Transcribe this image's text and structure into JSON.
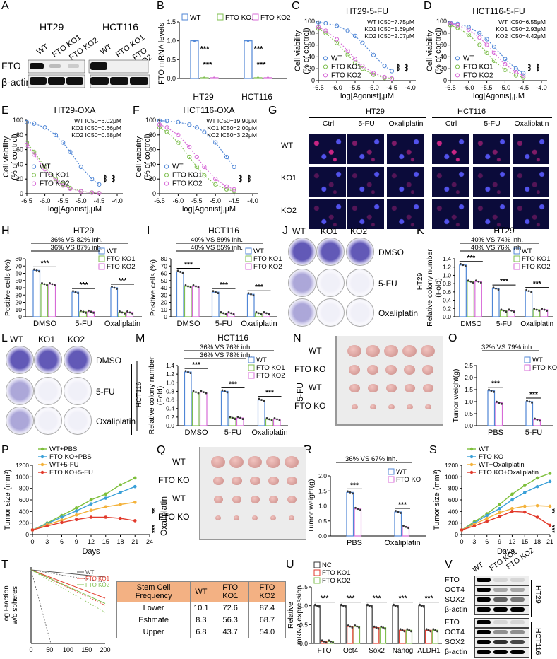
{
  "labels": [
    "A",
    "B",
    "C",
    "D",
    "E",
    "F",
    "G",
    "H",
    "I",
    "J",
    "K",
    "L",
    "M",
    "N",
    "O",
    "P",
    "Q",
    "R",
    "S",
    "T",
    "U",
    "V"
  ],
  "A": {
    "cells": [
      "HT29",
      "HCT116"
    ],
    "lanes": [
      "WT",
      "FTO KO1",
      "FTO KO2"
    ],
    "rows": [
      "FTO",
      "β-actin"
    ]
  },
  "B": {
    "ylabel": "FTO mRNA levels",
    "categories": [
      "HT29",
      "HCT116"
    ],
    "legend": [
      "WT",
      "FTO KO1",
      "FTO KO2"
    ],
    "sig": "***"
  },
  "C": {
    "title": "HT29-5-FU",
    "ic50": [
      "WT IC50=7.75μM",
      "KO1 IC50=1.69μM",
      "KO2 IC50=2.07μM"
    ]
  },
  "D": {
    "title": "HCT116-5-FU",
    "ic50": [
      "WT IC50=6.55μM",
      "KO1 IC50=2.93μM",
      "KO2 IC50=4.42μM"
    ],
    "xlabel": "log[Agonis],μM"
  },
  "E": {
    "title": "HT29-OXA",
    "ic50": [
      "WT IC50=6.02μM",
      "KO1 IC50=0.66μM",
      "KO2 IC50=0.58μM"
    ]
  },
  "F": {
    "title": "HCT116-OXA",
    "ic50": [
      "WT IC50=19.90μM",
      "KO1 IC50=2.00μM",
      "KO2 IC50=3.22μM"
    ]
  },
  "curve": {
    "xlabel": "log[Agonist],μM",
    "ylabel1": "Cell viability",
    "ylabel2": "(% of control)",
    "legend": [
      "WT",
      "FTO KO1",
      "FTO KO2"
    ],
    "xticks": [
      "-6.5",
      "-6.0",
      "-5.5",
      "-5.0",
      "-4.5",
      "-4.0"
    ],
    "yticks": [
      "0",
      "20",
      "40",
      "60",
      "80",
      "100"
    ],
    "sig": "***"
  },
  "G": {
    "groups": [
      "HT29",
      "HCT116"
    ],
    "cols": [
      "Ctrl",
      "5-FU",
      "Oxaliplatin",
      "Ctrl",
      "5-FU",
      "Oxaliplatin"
    ],
    "rows": [
      "WT",
      "KO1",
      "KO2"
    ]
  },
  "H": {
    "title": "HT29",
    "notes": [
      "36% VS 82% inh.",
      "36% VS 87% inh."
    ],
    "ylabel": "Positive cells (%)",
    "cats": [
      "DMSO",
      "5-FU",
      "Oxaliplatin"
    ],
    "yticks": [
      "0",
      "10",
      "20",
      "30",
      "40",
      "50",
      "60",
      "70",
      "80"
    ]
  },
  "I": {
    "title": "HCT116",
    "notes": [
      "40% VS 89% inh.",
      "40% VS 85% inh."
    ],
    "ylabel": "Positive cells (%)",
    "cats": [
      "DMSO",
      "5-FU",
      "Oxaliplatin"
    ]
  },
  "J": {
    "cols": [
      "WT",
      "KO1",
      "KO2"
    ],
    "rows": [
      "DMSO",
      "5-FU",
      "Oxaliplatin"
    ]
  },
  "K": {
    "title": "HT29",
    "notes": [
      "40% VS 74% inh.",
      "40% VS 76% inh."
    ],
    "ylabel1": "Relative colony number",
    "ylabel2": "(Fold)",
    "side": "HT29",
    "cats": [
      "DMSO",
      "5-FU",
      "Oxaliplatin"
    ],
    "yticks": [
      "0.0",
      "0.2",
      "0.4",
      "0.6",
      "0.8",
      "1.0",
      "1.2",
      "1.4"
    ]
  },
  "L": {
    "cols": [
      "WT",
      "KO1",
      "KO2"
    ],
    "rows": [
      "DMSO",
      "5-FU",
      "Oxaliplatin"
    ],
    "side": "HCT116"
  },
  "M": {
    "title": "HCT116",
    "notes": [
      "36% VS 76% inh.",
      "36% VS 78% inh."
    ],
    "ylabel1": "Relative colony number",
    "ylabel2": "(Fold)",
    "cats": [
      "DMSO",
      "5-FU",
      "Oxaliplatin"
    ]
  },
  "N": {
    "rows": [
      "WT",
      "FTO KO",
      "WT",
      "FTO KO"
    ],
    "side": "5-FU"
  },
  "O": {
    "note": "32% VS 79% inh.",
    "ylabel": "Tumor weight(g)",
    "legend": [
      "WT",
      "FTO KO"
    ],
    "cats": [
      "PBS",
      "5-FU"
    ],
    "yticks": [
      "0.0",
      "0.5",
      "1.0",
      "1.5",
      "2.0",
      "2.5"
    ]
  },
  "P": {
    "ylabel": "Tumor size (mm³)",
    "xlabel": "Days",
    "legend": [
      "WT+PBS",
      "FTO KO+PBS",
      "WT+5-FU",
      "FTO KO+5-FU"
    ],
    "xticks": [
      "0",
      "3",
      "6",
      "9",
      "12",
      "15",
      "18",
      "21",
      "24"
    ],
    "yticks": [
      "0",
      "200",
      "400",
      "600",
      "800",
      "1000",
      "1200"
    ],
    "sig": [
      "**",
      "***"
    ]
  },
  "Q": {
    "rows": [
      "WT",
      "FTO KO",
      "WT",
      "FTO KO"
    ],
    "side": "Oxaliplatin"
  },
  "R": {
    "note": "36% VS 67% inh.",
    "ylabel": "Tumor weight(g)",
    "legend": [
      "WT",
      "FTO KO"
    ],
    "cats": [
      "PBS",
      "Oxaliplatin"
    ]
  },
  "S": {
    "ylabel": "Tumor size (mm³)",
    "xlabel": "Days",
    "legend": [
      "WT",
      "FTO KO",
      "WT+Oxaliplatin",
      "FTO KO+Oxaliplatin"
    ],
    "xticks": [
      "0",
      "3",
      "6",
      "9",
      "12",
      "15",
      "18",
      "21"
    ],
    "yticks": [
      "0",
      "200",
      "400",
      "600",
      "800",
      "1000",
      "1200"
    ],
    "sig": [
      "**",
      "***"
    ]
  },
  "T": {
    "ylabel1": "Log Fraction",
    "ylabel2": "w/o spheres",
    "legend": [
      "WT",
      "FTO KO1",
      "FTO KO2"
    ],
    "xticks": [
      "0",
      "50",
      "100",
      "150",
      "200"
    ],
    "table": {
      "header": [
        "Stem Cell Frequency",
        "WT",
        "FTO KO1",
        "FTO KO2"
      ],
      "rows": [
        [
          "Lower",
          "10.1",
          "72.6",
          "87.4"
        ],
        [
          "Estimate",
          "8.3",
          "56.3",
          "68.7"
        ],
        [
          "Upper",
          "6.8",
          "43.7",
          "54.0"
        ]
      ]
    }
  },
  "U": {
    "ylabel1": "Relative",
    "ylabel2": "mRNA expression",
    "legend": [
      "NC",
      "FTO KO1",
      "FTO KO2"
    ],
    "cats": [
      "FTO",
      "Oct4",
      "Sox2",
      "Nanog",
      "ALDH1"
    ],
    "yticks": [
      "0.0",
      "0.5",
      "1.0",
      "1.5"
    ]
  },
  "V": {
    "lanes": [
      "WT",
      "FTO KO1",
      "FTO KO2"
    ],
    "rows": [
      "FTO",
      "OCT4",
      "SOX2",
      "β-actin",
      "FTO",
      "OCT4",
      "SOX2",
      "β-actin"
    ],
    "groups": [
      "HT29",
      "HCT116"
    ]
  },
  "colors": {
    "wt": "#4f86d6",
    "ko1": "#7fbf4f",
    "ko2": "#d76ad7",
    "red": "#e23a2c",
    "orange": "#f4b23a"
  },
  "chart_data": [
    {
      "type": "bar",
      "title": "",
      "categories": [
        "HT29",
        "HCT116"
      ],
      "ylabel": "FTO mRNA levels",
      "ylim": [
        0,
        1.5
      ],
      "series": [
        {
          "name": "WT",
          "values": [
            1.0,
            1.0
          ]
        },
        {
          "name": "FTO KO1",
          "values": [
            0.02,
            0.02
          ]
        },
        {
          "name": "FTO KO2",
          "values": [
            0.02,
            0.02
          ]
        }
      ]
    },
    {
      "type": "bar",
      "title": "HT29",
      "categories": [
        "DMSO",
        "5-FU",
        "Oxaliplatin"
      ],
      "ylabel": "Positive cells (%)",
      "ylim": [
        0,
        80
      ],
      "series": [
        {
          "name": "WT",
          "values": [
            64,
            34,
            40
          ]
        },
        {
          "name": "FTO KO1",
          "values": [
            45,
            7,
            6
          ]
        },
        {
          "name": "FTO KO2",
          "values": [
            45,
            7,
            6
          ]
        }
      ]
    },
    {
      "type": "bar",
      "title": "HCT116",
      "categories": [
        "DMSO",
        "5-FU",
        "Oxaliplatin"
      ],
      "ylabel": "Positive cells (%)",
      "ylim": [
        0,
        80
      ],
      "series": [
        {
          "name": "WT",
          "values": [
            62,
            34,
            31
          ]
        },
        {
          "name": "FTO KO1",
          "values": [
            42,
            5,
            5
          ]
        },
        {
          "name": "FTO KO2",
          "values": [
            42,
            5,
            5
          ]
        }
      ]
    },
    {
      "type": "bar",
      "title": "HT29",
      "categories": [
        "DMSO",
        "5-FU",
        "Oxaliplatin"
      ],
      "ylabel": "Relative colony number (Fold)",
      "ylim": [
        0,
        1.4
      ],
      "series": [
        {
          "name": "WT",
          "values": [
            1.25,
            0.68,
            0.62
          ]
        },
        {
          "name": "FTO KO1",
          "values": [
            0.85,
            0.15,
            0.17
          ]
        },
        {
          "name": "FTO KO2",
          "values": [
            0.85,
            0.15,
            0.17
          ]
        }
      ]
    },
    {
      "type": "bar",
      "title": "HCT116",
      "categories": [
        "DMSO",
        "5-FU",
        "Oxaliplatin"
      ],
      "ylabel": "Relative colony number (Fold)",
      "ylim": [
        0,
        1.4
      ],
      "series": [
        {
          "name": "WT",
          "values": [
            1.25,
            0.8,
            0.6
          ]
        },
        {
          "name": "FTO KO1",
          "values": [
            0.78,
            0.18,
            0.15
          ]
        },
        {
          "name": "FTO KO2",
          "values": [
            0.78,
            0.18,
            0.15
          ]
        }
      ]
    },
    {
      "type": "bar",
      "title": "",
      "categories": [
        "PBS",
        "5-FU"
      ],
      "ylabel": "Tumor weight(g)",
      "ylim": [
        0,
        2.5
      ],
      "series": [
        {
          "name": "WT",
          "values": [
            1.45,
            1.0
          ]
        },
        {
          "name": "FTO KO",
          "values": [
            0.95,
            0.25
          ]
        }
      ]
    },
    {
      "type": "bar",
      "title": "",
      "categories": [
        "PBS",
        "Oxaliplatin"
      ],
      "ylabel": "Tumor weight(g)",
      "ylim": [
        0,
        2.0
      ],
      "series": [
        {
          "name": "WT",
          "values": [
            1.45,
            0.8
          ]
        },
        {
          "name": "FTO KO",
          "values": [
            0.9,
            0.3
          ]
        }
      ]
    },
    {
      "type": "line",
      "title": "",
      "x": [
        0,
        3,
        6,
        9,
        12,
        15,
        18,
        21
      ],
      "xlabel": "Days",
      "ylabel": "Tumor size (mm³)",
      "ylim": [
        0,
        1200
      ],
      "series": [
        {
          "name": "WT+PBS",
          "values": [
            80,
            200,
            330,
            460,
            600,
            700,
            860,
            980
          ]
        },
        {
          "name": "FTO KO+PBS",
          "values": [
            80,
            190,
            300,
            410,
            530,
            630,
            730,
            830
          ]
        },
        {
          "name": "WT+5-FU",
          "values": [
            80,
            170,
            250,
            340,
            420,
            480,
            520,
            560
          ]
        },
        {
          "name": "FTO KO+5-FU",
          "values": [
            80,
            150,
            210,
            260,
            300,
            300,
            280,
            240
          ]
        }
      ]
    },
    {
      "type": "line",
      "title": "",
      "x": [
        0,
        3,
        6,
        9,
        12,
        15,
        18,
        21
      ],
      "xlabel": "Days",
      "ylabel": "Tumor size (mm³)",
      "ylim": [
        0,
        1200
      ],
      "series": [
        {
          "name": "WT",
          "values": [
            80,
            220,
            360,
            520,
            700,
            850,
            980,
            1060
          ]
        },
        {
          "name": "FTO KO",
          "values": [
            80,
            200,
            330,
            450,
            600,
            730,
            830,
            920
          ]
        },
        {
          "name": "WT+Oxaliplatin",
          "values": [
            80,
            180,
            280,
            380,
            450,
            490,
            500,
            490
          ]
        },
        {
          "name": "FTO KO+Oxaliplatin",
          "values": [
            80,
            150,
            230,
            310,
            400,
            390,
            300,
            160
          ]
        }
      ]
    },
    {
      "type": "bar",
      "title": "",
      "categories": [
        "FTO",
        "Oct4",
        "Sox2",
        "Nanog",
        "ALDH1"
      ],
      "ylabel": "Relative mRNA expression",
      "ylim": [
        0,
        1.5
      ],
      "series": [
        {
          "name": "NC",
          "values": [
            1.0,
            1.0,
            1.0,
            1.0,
            1.0
          ]
        },
        {
          "name": "FTO KO1",
          "values": [
            0.05,
            0.45,
            0.42,
            0.35,
            0.35
          ]
        },
        {
          "name": "FTO KO2",
          "values": [
            0.05,
            0.45,
            0.42,
            0.35,
            0.35
          ]
        }
      ]
    }
  ]
}
